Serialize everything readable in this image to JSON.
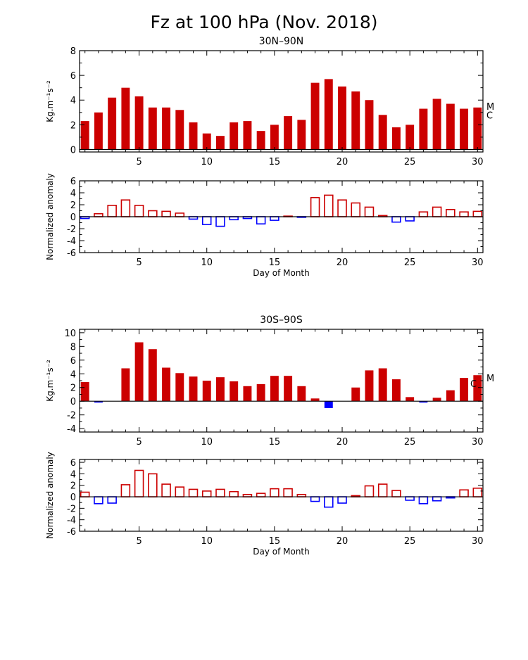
{
  "figure": {
    "title": "Fz at 100 hPa (Nov. 2018)",
    "colors": {
      "positive": "#cc0000",
      "negative": "#0000ff",
      "frame": "#000000"
    }
  },
  "chart_data": [
    {
      "id": "nh-fz",
      "type": "bar",
      "title": "30N–90N",
      "ylabel": "Kg.m⁻¹s⁻²",
      "xlabel": "",
      "xlim": [
        0.6,
        30.4
      ],
      "ylim": [
        -0.2,
        8
      ],
      "xticks": [
        5,
        10,
        15,
        20,
        25,
        30
      ],
      "yticks": [
        0,
        2,
        4,
        6,
        8
      ],
      "filled": true,
      "side_labels": [
        {
          "text": "M",
          "value": 3.5
        },
        {
          "text": "C",
          "value": 2.8
        }
      ],
      "x": [
        1,
        2,
        3,
        4,
        5,
        6,
        7,
        8,
        9,
        10,
        11,
        12,
        13,
        14,
        15,
        16,
        17,
        18,
        19,
        20,
        21,
        22,
        23,
        24,
        25,
        26,
        27,
        28,
        29,
        30
      ],
      "values": [
        2.3,
        3.0,
        4.2,
        5.0,
        4.3,
        3.4,
        3.4,
        3.2,
        2.2,
        1.3,
        1.1,
        2.2,
        2.3,
        1.5,
        2.0,
        2.7,
        2.4,
        5.4,
        5.7,
        5.1,
        4.7,
        4.0,
        2.8,
        1.8,
        2.0,
        3.3,
        4.1,
        3.7,
        3.3,
        3.4
      ]
    },
    {
      "id": "nh-anom",
      "type": "bar",
      "title": "",
      "ylabel": "Normalized anomaly",
      "xlabel": "Day of Month",
      "xlim": [
        0.6,
        30.4
      ],
      "ylim": [
        -6,
        6
      ],
      "xticks": [
        5,
        10,
        15,
        20,
        25,
        30
      ],
      "yticks": [
        -6,
        -4,
        -2,
        0,
        2,
        4,
        6
      ],
      "filled": false,
      "x": [
        1,
        2,
        3,
        4,
        5,
        6,
        7,
        8,
        9,
        10,
        11,
        12,
        13,
        14,
        15,
        16,
        17,
        18,
        19,
        20,
        21,
        22,
        23,
        24,
        25,
        26,
        27,
        28,
        29,
        30
      ],
      "values": [
        -0.3,
        0.5,
        1.9,
        2.8,
        1.9,
        1.0,
        0.9,
        0.6,
        -0.4,
        -1.3,
        -1.6,
        -0.5,
        -0.3,
        -1.2,
        -0.6,
        0.1,
        -0.1,
        3.2,
        3.6,
        2.8,
        2.3,
        1.6,
        0.2,
        -0.9,
        -0.7,
        0.8,
        1.6,
        1.2,
        0.8,
        0.9
      ]
    },
    {
      "id": "sh-fz",
      "type": "bar",
      "title": "30S–90S",
      "ylabel": "Kg.m⁻¹s⁻²",
      "xlabel": "",
      "xlim": [
        0.6,
        30.4
      ],
      "ylim": [
        -4.5,
        10.5
      ],
      "xticks": [
        5,
        10,
        15,
        20,
        25,
        30
      ],
      "yticks": [
        -4,
        -2,
        0,
        2,
        4,
        6,
        8,
        10
      ],
      "filled": true,
      "side_labels": [
        {
          "text": "C",
          "value": 2.6
        },
        {
          "text": "M",
          "value": 3.4
        }
      ],
      "x": [
        1,
        2,
        3,
        4,
        5,
        6,
        7,
        8,
        9,
        10,
        11,
        12,
        13,
        14,
        15,
        16,
        17,
        18,
        19,
        20,
        21,
        22,
        23,
        24,
        25,
        26,
        27,
        28,
        29,
        30
      ],
      "values": [
        2.8,
        -0.2,
        0,
        4.8,
        8.6,
        7.6,
        4.9,
        4.1,
        3.6,
        3.0,
        3.5,
        2.9,
        2.2,
        2.5,
        3.7,
        3.7,
        2.2,
        0.4,
        -1.0,
        0,
        2.0,
        4.5,
        4.8,
        3.2,
        0.6,
        -0.2,
        0.5,
        1.6,
        3.4,
        3.8
      ]
    },
    {
      "id": "sh-anom",
      "type": "bar",
      "title": "",
      "ylabel": "Normalized anomaly",
      "xlabel": "Day of Month",
      "xlim": [
        0.6,
        30.4
      ],
      "ylim": [
        -6,
        6.5
      ],
      "xticks": [
        5,
        10,
        15,
        20,
        25,
        30
      ],
      "yticks": [
        -6,
        -4,
        -2,
        0,
        2,
        4,
        6
      ],
      "filled": false,
      "x": [
        1,
        2,
        3,
        4,
        5,
        6,
        7,
        8,
        9,
        10,
        11,
        12,
        13,
        14,
        15,
        16,
        17,
        18,
        19,
        20,
        21,
        22,
        23,
        24,
        25,
        26,
        27,
        28,
        29,
        30
      ],
      "values": [
        0.8,
        -1.2,
        -1.1,
        2.1,
        4.6,
        4.0,
        2.2,
        1.7,
        1.3,
        1.0,
        1.3,
        0.9,
        0.4,
        0.6,
        1.4,
        1.4,
        0.4,
        -0.8,
        -1.8,
        -1.1,
        0.2,
        1.9,
        2.2,
        1.1,
        -0.6,
        -1.2,
        -0.7,
        -0.2,
        1.2,
        1.5
      ]
    }
  ]
}
